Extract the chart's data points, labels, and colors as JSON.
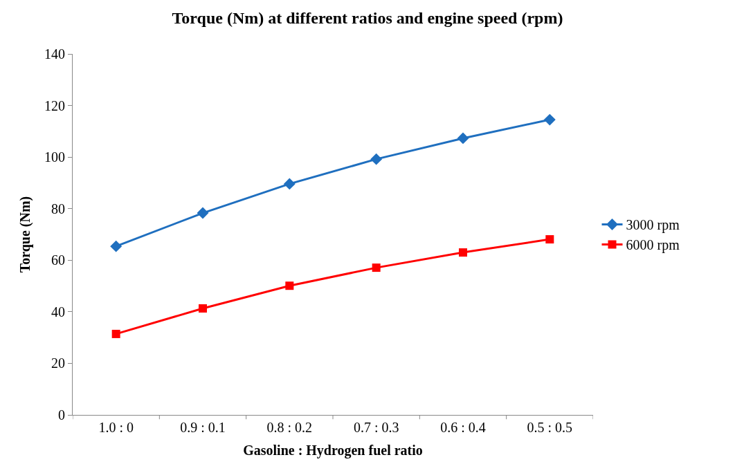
{
  "chart_data": {
    "type": "line",
    "title": "Torque (Nm) at different ratios and engine speed (rpm)",
    "xlabel": "Gasoline : Hydrogen fuel ratio",
    "ylabel": "Torque (Nm)",
    "categories": [
      "1.0 : 0",
      "0.9 : 0.1",
      "0.8 : 0.2",
      "0.7 : 0.3",
      "0.6 : 0.4",
      "0.5 : 0.5"
    ],
    "series": [
      {
        "name": "3000 rpm",
        "color": "#1f6fbf",
        "marker": "diamond",
        "values": [
          65.4,
          78.3,
          89.6,
          99.2,
          107.3,
          114.5
        ]
      },
      {
        "name": "6000 rpm",
        "color": "#ff0000",
        "marker": "square",
        "values": [
          31.4,
          41.3,
          50.1,
          57.1,
          63.0,
          68.1
        ]
      }
    ],
    "ylim": [
      0,
      140
    ],
    "yticks": [
      0,
      20,
      40,
      60,
      80,
      100,
      120,
      140
    ],
    "legend": "right",
    "line_style": "solid"
  }
}
